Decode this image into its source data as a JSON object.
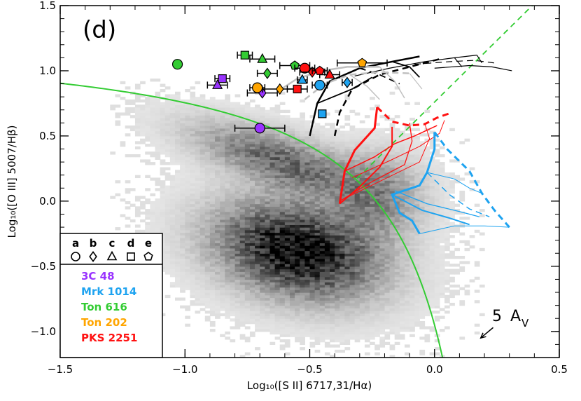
{
  "chart_data": {
    "type": "scatter",
    "panel_label": "(d)",
    "xlabel": "Log₁₀([S II] 6717,31/Hα)",
    "ylabel": "Log₁₀([O III] 5007/Hβ)",
    "xlim": [
      -1.5,
      0.5
    ],
    "ylim": [
      -1.2,
      1.5
    ],
    "x_ticks": [
      {
        "value": -1.5,
        "label": "−1.5"
      },
      {
        "value": -1.0,
        "label": "−1.0"
      },
      {
        "value": -0.5,
        "label": "−0.5"
      },
      {
        "value": 0.0,
        "label": "0.0"
      },
      {
        "value": 0.5,
        "label": "0.5"
      }
    ],
    "y_ticks": [
      {
        "value": -1.0,
        "label": "−1.0"
      },
      {
        "value": -0.5,
        "label": "−0.5"
      },
      {
        "value": 0.0,
        "label": "0.0"
      },
      {
        "value": 0.5,
        "label": "0.5"
      },
      {
        "value": 1.0,
        "label": "1.0"
      },
      {
        "value": 1.5,
        "label": "1.5"
      }
    ],
    "background_density": {
      "description": "greyscale 2D histogram of SDSS galaxies",
      "color": "#000000"
    },
    "demarcation_curve": {
      "formula": "y = 0.72/(x - 0.32) + 1.30",
      "color": "#33cc33"
    },
    "liner_line": {
      "formula": "y = 1.89x + 0.76",
      "color": "#33cc33",
      "style": "dashed"
    },
    "reddening_vector": {
      "label_number": "5",
      "label_text": "A",
      "label_sub": "V",
      "dx": -0.05,
      "dy": -0.08
    },
    "legend": {
      "symbol_letters": [
        "a",
        "b",
        "c",
        "d",
        "e"
      ],
      "symbols": [
        "circle",
        "diamond",
        "triangle",
        "square",
        "pentagon"
      ],
      "objects": [
        {
          "name": "3C 48",
          "color": "#9933ff"
        },
        {
          "name": "Mrk 1014",
          "color": "#1ea3f0"
        },
        {
          "name": "Ton 616",
          "color": "#33cc33"
        },
        {
          "name": "Ton 202",
          "color": "#ffa500"
        },
        {
          "name": "PKS 2251",
          "color": "#ff1111"
        }
      ]
    },
    "series": [
      {
        "object": "3C 48",
        "color": "#9933ff",
        "points": [
          {
            "x": -0.7,
            "y": 0.56,
            "xerr": 0.1,
            "shape": "circle"
          },
          {
            "x": -0.69,
            "y": 0.83,
            "xerr": 0.06,
            "shape": "diamond"
          },
          {
            "x": -0.87,
            "y": 0.89,
            "xerr": 0.04,
            "shape": "triangle"
          },
          {
            "x": -0.85,
            "y": 0.94,
            "xerr": 0.03,
            "shape": "square"
          }
        ]
      },
      {
        "object": "Mrk 1014",
        "color": "#1ea3f0",
        "points": [
          {
            "x": -0.46,
            "y": 0.89,
            "xerr": 0.03,
            "shape": "circle"
          },
          {
            "x": -0.35,
            "y": 0.91,
            "xerr": 0.02,
            "shape": "diamond"
          },
          {
            "x": -0.53,
            "y": 0.93,
            "xerr": 0.02,
            "shape": "triangle"
          },
          {
            "x": -0.45,
            "y": 0.67,
            "xerr": 0.0,
            "shape": "square"
          }
        ]
      },
      {
        "object": "Ton 616",
        "color": "#33cc33",
        "points": [
          {
            "x": -1.03,
            "y": 1.05,
            "xerr": 0.0,
            "shape": "circle"
          },
          {
            "x": -0.67,
            "y": 0.98,
            "xerr": 0.04,
            "shape": "diamond"
          },
          {
            "x": -0.69,
            "y": 1.09,
            "xerr": 0.05,
            "shape": "triangle"
          },
          {
            "x": -0.76,
            "y": 1.12,
            "xerr": 0.03,
            "shape": "square"
          },
          {
            "x": -0.56,
            "y": 1.04,
            "xerr": 0.06,
            "shape": "pentagon"
          }
        ]
      },
      {
        "object": "Ton 202",
        "color": "#ffa500",
        "points": [
          {
            "x": -0.71,
            "y": 0.87,
            "xerr": 0.03,
            "shape": "circle"
          },
          {
            "x": -0.62,
            "y": 0.86,
            "xerr": 0.07,
            "shape": "diamond"
          },
          {
            "x": -0.29,
            "y": 1.06,
            "xerr": 0.1,
            "shape": "pentagon"
          }
        ]
      },
      {
        "object": "PKS 2251",
        "color": "#ff1111",
        "points": [
          {
            "x": -0.52,
            "y": 1.02,
            "xerr": 0.04,
            "shape": "circle"
          },
          {
            "x": -0.49,
            "y": 0.99,
            "xerr": 0.05,
            "shape": "diamond"
          },
          {
            "x": -0.42,
            "y": 0.97,
            "xerr": 0.04,
            "shape": "triangle"
          },
          {
            "x": -0.55,
            "y": 0.86,
            "xerr": 0.04,
            "shape": "square"
          },
          {
            "x": -0.46,
            "y": 1.0,
            "xerr": 0.03,
            "shape": "pentagon"
          }
        ]
      }
    ],
    "model_grids": [
      {
        "color": "#000000",
        "lines": [
          {
            "style": "solid",
            "width": 2.5,
            "pts": [
              [
                -0.5,
                0.5
              ],
              [
                -0.47,
                0.75
              ],
              [
                -0.42,
                0.92
              ],
              [
                -0.3,
                1.02
              ],
              [
                -0.17,
                1.07
              ],
              [
                -0.06,
                1.11
              ]
            ]
          },
          {
            "style": "dashed",
            "width": 2.5,
            "pts": [
              [
                -0.4,
                0.5
              ],
              [
                -0.38,
                0.68
              ],
              [
                -0.33,
                0.86
              ],
              [
                -0.22,
                0.97
              ],
              [
                -0.1,
                1.03
              ],
              [
                0.02,
                1.09
              ]
            ]
          },
          {
            "style": "solid",
            "width": 1.2,
            "pts": [
              [
                -0.32,
                0.96
              ],
              [
                -0.18,
                1.02
              ],
              [
                -0.04,
                1.07
              ],
              [
                0.08,
                1.1
              ],
              [
                0.17,
                1.12
              ]
            ]
          },
          {
            "style": "dashed",
            "width": 1.2,
            "pts": [
              [
                -0.08,
                1.05
              ],
              [
                0.06,
                1.07
              ],
              [
                0.16,
                1.08
              ],
              [
                0.24,
                1.06
              ]
            ]
          },
          {
            "style": "solid",
            "width": 1.2,
            "pts": [
              [
                0.0,
                1.02
              ],
              [
                0.14,
                1.04
              ],
              [
                0.23,
                1.03
              ],
              [
                0.31,
                1.0
              ]
            ]
          },
          {
            "style": "solid",
            "width": 1.8,
            "pts": [
              [
                -0.47,
                0.75
              ],
              [
                -0.33,
                0.86
              ],
              [
                -0.25,
                0.95
              ]
            ]
          },
          {
            "style": "solid",
            "width": 1.8,
            "pts": [
              [
                -0.17,
                1.07
              ],
              [
                -0.1,
                1.03
              ],
              [
                -0.06,
                0.95
              ]
            ]
          },
          {
            "style": "dashed",
            "width": 1.8,
            "pts": [
              [
                -0.3,
                1.02
              ],
              [
                -0.22,
                0.97
              ],
              [
                -0.14,
                0.9
              ]
            ]
          },
          {
            "style": "solid",
            "width": 1.2,
            "pts": [
              [
                0.08,
                1.1
              ],
              [
                0.11,
                1.03
              ]
            ]
          },
          {
            "style": "solid",
            "width": 1.2,
            "pts": [
              [
                0.17,
                1.12
              ],
              [
                0.19,
                1.06
              ]
            ]
          }
        ]
      },
      {
        "color": "#c0c0c0",
        "lines": [
          {
            "style": "solid",
            "width": 2.5,
            "pts": [
              [
                -0.63,
                0.84
              ],
              [
                -0.55,
                0.94
              ],
              [
                -0.45,
                1.0
              ],
              [
                -0.35,
                1.03
              ],
              [
                -0.22,
                1.03
              ]
            ]
          },
          {
            "style": "dashed",
            "width": 2.5,
            "pts": [
              [
                -0.52,
                0.78
              ],
              [
                -0.44,
                0.9
              ],
              [
                -0.34,
                0.97
              ],
              [
                -0.22,
                0.99
              ],
              [
                -0.1,
                0.98
              ]
            ]
          },
          {
            "style": "solid",
            "width": 1.5,
            "pts": [
              [
                -0.34,
                0.97
              ],
              [
                -0.27,
                0.88
              ],
              [
                -0.22,
                0.78
              ]
            ]
          },
          {
            "style": "solid",
            "width": 1.5,
            "pts": [
              [
                -0.22,
                1.03
              ],
              [
                -0.16,
                0.92
              ],
              [
                -0.12,
                0.79
              ]
            ]
          },
          {
            "style": "solid",
            "width": 1.2,
            "pts": [
              [
                -0.1,
                0.98
              ],
              [
                -0.05,
                0.86
              ]
            ]
          }
        ]
      },
      {
        "color": "#ff1111",
        "lines": [
          {
            "style": "solid",
            "width": 3,
            "pts": [
              [
                -0.38,
                -0.02
              ],
              [
                -0.36,
                0.23
              ],
              [
                -0.32,
                0.39
              ],
              [
                -0.24,
                0.56
              ],
              [
                -0.23,
                0.72
              ]
            ]
          },
          {
            "style": "dashed",
            "width": 3,
            "pts": [
              [
                -0.23,
                0.72
              ],
              [
                -0.17,
                0.61
              ],
              [
                -0.1,
                0.58
              ],
              [
                -0.04,
                0.59
              ],
              [
                0.01,
                0.64
              ],
              [
                0.07,
                0.68
              ]
            ]
          },
          {
            "style": "solid",
            "width": 2,
            "pts": [
              [
                -0.38,
                -0.02
              ],
              [
                -0.3,
                0.11
              ],
              [
                -0.22,
                0.26
              ],
              [
                -0.17,
                0.42
              ],
              [
                -0.17,
                0.57
              ]
            ]
          },
          {
            "style": "solid",
            "width": 1.3,
            "pts": [
              [
                -0.38,
                0.0
              ],
              [
                -0.25,
                0.15
              ],
              [
                -0.12,
                0.28
              ],
              [
                -0.09,
                0.46
              ],
              [
                -0.1,
                0.6
              ]
            ]
          },
          {
            "style": "solid",
            "width": 1.0,
            "pts": [
              [
                -0.36,
                0.02
              ],
              [
                -0.2,
                0.17
              ],
              [
                -0.06,
                0.3
              ],
              [
                -0.02,
                0.48
              ],
              [
                -0.04,
                0.6
              ]
            ]
          },
          {
            "style": "solid",
            "width": 1.0,
            "pts": [
              [
                -0.33,
                0.18
              ],
              [
                -0.18,
                0.31
              ],
              [
                -0.06,
                0.42
              ],
              [
                0.02,
                0.52
              ],
              [
                0.04,
                0.62
              ]
            ]
          },
          {
            "style": "solid",
            "width": 1.5,
            "pts": [
              [
                -0.36,
                0.23
              ],
              [
                -0.24,
                0.34
              ],
              [
                -0.16,
                0.44
              ],
              [
                -0.08,
                0.5
              ],
              [
                0.01,
                0.58
              ]
            ]
          }
        ]
      },
      {
        "color": "#1ea3f0",
        "lines": [
          {
            "style": "solid",
            "width": 3,
            "pts": [
              [
                0.0,
                0.53
              ],
              [
                0.0,
                0.4
              ],
              [
                -0.03,
                0.22
              ],
              [
                -0.06,
                0.12
              ],
              [
                -0.17,
                0.05
              ],
              [
                -0.14,
                -0.09
              ],
              [
                -0.09,
                -0.15
              ],
              [
                -0.06,
                -0.25
              ]
            ]
          },
          {
            "style": "dashed",
            "width": 3,
            "pts": [
              [
                0.0,
                0.53
              ],
              [
                0.05,
                0.4
              ],
              [
                0.14,
                0.23
              ],
              [
                0.19,
                0.06
              ],
              [
                0.24,
                -0.07
              ],
              [
                0.3,
                -0.2
              ]
            ]
          },
          {
            "style": "solid",
            "width": 2,
            "pts": [
              [
                -0.17,
                0.05
              ],
              [
                -0.05,
                -0.07
              ],
              [
                0.06,
                -0.13
              ],
              [
                0.14,
                -0.18
              ]
            ]
          },
          {
            "style": "solid",
            "width": 1.3,
            "pts": [
              [
                -0.16,
                0.08
              ],
              [
                -0.03,
                -0.02
              ],
              [
                0.1,
                -0.08
              ],
              [
                0.18,
                -0.12
              ]
            ]
          },
          {
            "style": "solid",
            "width": 1.0,
            "pts": [
              [
                -0.06,
                -0.25
              ],
              [
                0.08,
                -0.19
              ],
              [
                0.2,
                -0.19
              ],
              [
                0.3,
                -0.2
              ]
            ]
          },
          {
            "style": "solid",
            "width": 1.0,
            "pts": [
              [
                -0.03,
                0.22
              ],
              [
                0.08,
                0.17
              ],
              [
                0.14,
                0.1
              ],
              [
                0.19,
                0.06
              ]
            ]
          },
          {
            "style": "dashed",
            "width": 1.5,
            "pts": [
              [
                -0.03,
                0.22
              ],
              [
                0.06,
                0.05
              ],
              [
                0.14,
                -0.06
              ],
              [
                0.22,
                -0.12
              ]
            ]
          }
        ]
      }
    ]
  }
}
